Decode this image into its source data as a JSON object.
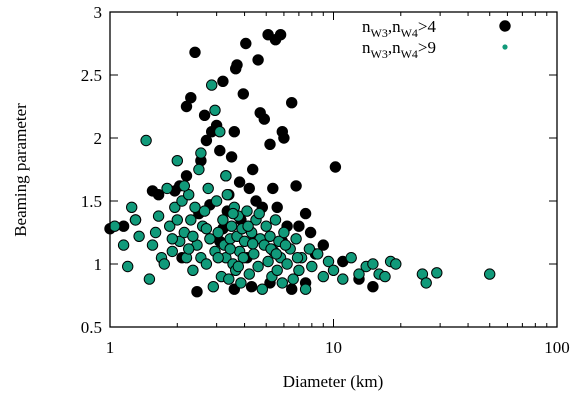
{
  "chart_data": {
    "type": "scatter",
    "xlabel": "Diameter (km)",
    "ylabel": "Beaming parameter",
    "xscale": "log",
    "xlim": [
      1,
      100
    ],
    "ylim": [
      0.5,
      3
    ],
    "x_ticks": [
      1,
      10,
      100
    ],
    "x_tick_labels": [
      "1",
      "10",
      "100"
    ],
    "y_ticks": [
      0.5,
      1,
      1.5,
      2,
      2.5,
      3
    ],
    "y_tick_labels": [
      "0.5",
      "1",
      "1.5",
      "2",
      "2.5",
      "3"
    ],
    "grid": false,
    "legend_position": "top-right",
    "series": [
      {
        "name": "n_W3,n_W4>4",
        "legend_parts": {
          "a": "n",
          "a_sub": "W3",
          "b": ",n",
          "b_sub": "W4",
          "c": ">4"
        },
        "color": "#000000",
        "points": [
          [
            1.0,
            1.28
          ],
          [
            1.15,
            1.3
          ],
          [
            1.3,
            1.35
          ],
          [
            1.55,
            1.58
          ],
          [
            1.65,
            1.55
          ],
          [
            1.95,
            1.58
          ],
          [
            2.05,
            1.62
          ],
          [
            2.2,
            2.25
          ],
          [
            2.3,
            2.32
          ],
          [
            2.4,
            2.68
          ],
          [
            2.55,
            1.82
          ],
          [
            2.7,
            1.98
          ],
          [
            2.85,
            2.05
          ],
          [
            3.0,
            2.1
          ],
          [
            3.1,
            1.9
          ],
          [
            3.2,
            2.45
          ],
          [
            3.3,
            1.7
          ],
          [
            3.4,
            1.55
          ],
          [
            3.5,
            1.85
          ],
          [
            3.6,
            2.05
          ],
          [
            3.65,
            2.55
          ],
          [
            3.7,
            2.58
          ],
          [
            3.8,
            1.65
          ],
          [
            3.85,
            1.35
          ],
          [
            3.95,
            2.35
          ],
          [
            4.05,
            2.75
          ],
          [
            4.2,
            1.6
          ],
          [
            4.35,
            1.75
          ],
          [
            4.5,
            1.5
          ],
          [
            4.6,
            2.62
          ],
          [
            4.7,
            2.2
          ],
          [
            4.8,
            1.45
          ],
          [
            4.9,
            2.15
          ],
          [
            5.1,
            2.82
          ],
          [
            5.2,
            1.95
          ],
          [
            5.35,
            1.6
          ],
          [
            5.5,
            2.78
          ],
          [
            5.6,
            1.45
          ],
          [
            5.8,
            2.82
          ],
          [
            5.9,
            2.05
          ],
          [
            6.0,
            2.0
          ],
          [
            6.2,
            1.3
          ],
          [
            6.5,
            2.28
          ],
          [
            6.8,
            1.62
          ],
          [
            7.0,
            1.3
          ],
          [
            7.5,
            1.4
          ],
          [
            7.9,
            1.25
          ],
          [
            8.3,
            1.08
          ],
          [
            9.0,
            1.15
          ],
          [
            10.2,
            1.77
          ],
          [
            11.0,
            1.02
          ],
          [
            13.0,
            0.88
          ],
          [
            15.0,
            0.82
          ],
          [
            2.45,
            0.78
          ],
          [
            3.6,
            0.8
          ],
          [
            4.3,
            0.82
          ],
          [
            5.2,
            0.85
          ],
          [
            6.5,
            0.8
          ],
          [
            7.5,
            0.85
          ],
          [
            2.1,
            1.05
          ],
          [
            3.35,
            1.42
          ],
          [
            2.5,
            1.4
          ],
          [
            2.8,
            1.47
          ],
          [
            4.45,
            1.2
          ],
          [
            3.1,
            1.18
          ],
          [
            5.9,
            1.18
          ],
          [
            2.2,
            1.7
          ],
          [
            2.65,
            2.18
          ],
          [
            3.2,
            1.28
          ],
          [
            4.1,
            1.05
          ]
        ]
      },
      {
        "name": "n_W3,n_W4>9",
        "legend_parts": {
          "a": "n",
          "a_sub": "W3",
          "b": ",n",
          "b_sub": "W4",
          "c": ">9"
        },
        "color": "#119a7a",
        "points": [
          [
            1.05,
            1.3
          ],
          [
            1.15,
            1.15
          ],
          [
            1.2,
            0.98
          ],
          [
            1.25,
            1.45
          ],
          [
            1.3,
            1.35
          ],
          [
            1.35,
            1.22
          ],
          [
            1.45,
            1.98
          ],
          [
            1.5,
            0.88
          ],
          [
            1.55,
            1.15
          ],
          [
            1.6,
            1.25
          ],
          [
            1.65,
            1.38
          ],
          [
            1.7,
            1.05
          ],
          [
            1.75,
            1.0
          ],
          [
            1.8,
            1.6
          ],
          [
            1.85,
            1.3
          ],
          [
            1.9,
            1.1
          ],
          [
            1.95,
            1.45
          ],
          [
            2.0,
            1.82
          ],
          [
            2.05,
            1.18
          ],
          [
            2.1,
            1.5
          ],
          [
            2.15,
            1.25
          ],
          [
            2.2,
            1.05
          ],
          [
            2.25,
            1.55
          ],
          [
            2.3,
            1.35
          ],
          [
            2.35,
            0.95
          ],
          [
            2.4,
            1.45
          ],
          [
            2.45,
            1.15
          ],
          [
            2.5,
            1.75
          ],
          [
            2.55,
            1.05
          ],
          [
            2.6,
            1.3
          ],
          [
            2.65,
            1.42
          ],
          [
            2.7,
            1.0
          ],
          [
            2.75,
            1.6
          ],
          [
            2.8,
            1.2
          ],
          [
            2.85,
            2.42
          ],
          [
            2.9,
            0.82
          ],
          [
            2.95,
            1.1
          ],
          [
            3.0,
            1.5
          ],
          [
            3.05,
            1.25
          ],
          [
            3.1,
            2.05
          ],
          [
            3.15,
            0.9
          ],
          [
            3.2,
            1.35
          ],
          [
            3.25,
            1.15
          ],
          [
            3.3,
            1.05
          ],
          [
            3.35,
            1.55
          ],
          [
            3.4,
            0.88
          ],
          [
            3.45,
            1.2
          ],
          [
            3.5,
            1.3
          ],
          [
            3.55,
            1.0
          ],
          [
            3.6,
            1.45
          ],
          [
            3.65,
            0.95
          ],
          [
            3.7,
            1.22
          ],
          [
            3.75,
            1.38
          ],
          [
            3.8,
            1.1
          ],
          [
            3.85,
            0.85
          ],
          [
            3.9,
            1.28
          ],
          [
            3.95,
            1.05
          ],
          [
            4.0,
            1.18
          ],
          [
            4.1,
            1.42
          ],
          [
            4.2,
            0.92
          ],
          [
            4.3,
            1.25
          ],
          [
            4.4,
            1.08
          ],
          [
            4.5,
            1.35
          ],
          [
            4.6,
            0.98
          ],
          [
            4.7,
            1.2
          ],
          [
            4.8,
            0.8
          ],
          [
            4.9,
            1.15
          ],
          [
            5.0,
            1.3
          ],
          [
            5.1,
            1.02
          ],
          [
            5.2,
            1.22
          ],
          [
            5.3,
            0.9
          ],
          [
            5.4,
            1.1
          ],
          [
            5.5,
            1.35
          ],
          [
            5.6,
            0.95
          ],
          [
            5.7,
            1.18
          ],
          [
            5.8,
            1.05
          ],
          [
            5.9,
            0.85
          ],
          [
            6.0,
            1.25
          ],
          [
            6.2,
            1.0
          ],
          [
            6.4,
            1.12
          ],
          [
            6.6,
            0.88
          ],
          [
            6.8,
            1.2
          ],
          [
            7.0,
            0.95
          ],
          [
            7.2,
            1.05
          ],
          [
            7.5,
            0.8
          ],
          [
            7.8,
            1.12
          ],
          [
            8.0,
            0.98
          ],
          [
            8.5,
            1.08
          ],
          [
            9.0,
            0.9
          ],
          [
            9.5,
            1.02
          ],
          [
            10.0,
            0.95
          ],
          [
            11.0,
            0.88
          ],
          [
            12.0,
            1.05
          ],
          [
            13.0,
            0.92
          ],
          [
            14.0,
            0.98
          ],
          [
            15.0,
            1.0
          ],
          [
            16.0,
            0.92
          ],
          [
            17.0,
            0.9
          ],
          [
            18.0,
            1.02
          ],
          [
            19.0,
            1.0
          ],
          [
            25.0,
            0.92
          ],
          [
            26.0,
            0.85
          ],
          [
            29.0,
            0.93
          ],
          [
            50.0,
            0.92
          ],
          [
            2.15,
            1.62
          ],
          [
            2.55,
            1.88
          ],
          [
            2.95,
            2.22
          ],
          [
            3.3,
            1.7
          ],
          [
            2.0,
            1.35
          ],
          [
            2.35,
            1.22
          ],
          [
            4.15,
            1.3
          ],
          [
            4.65,
            1.4
          ],
          [
            5.25,
            1.12
          ],
          [
            3.45,
            1.12
          ],
          [
            2.7,
            1.28
          ],
          [
            3.05,
            1.05
          ],
          [
            3.75,
            0.98
          ],
          [
            4.35,
            1.16
          ],
          [
            1.9,
            1.2
          ],
          [
            2.25,
            1.12
          ],
          [
            5.55,
            1.08
          ],
          [
            6.1,
            1.15
          ],
          [
            6.9,
            1.05
          ],
          [
            3.55,
            1.4
          ]
        ]
      }
    ]
  }
}
